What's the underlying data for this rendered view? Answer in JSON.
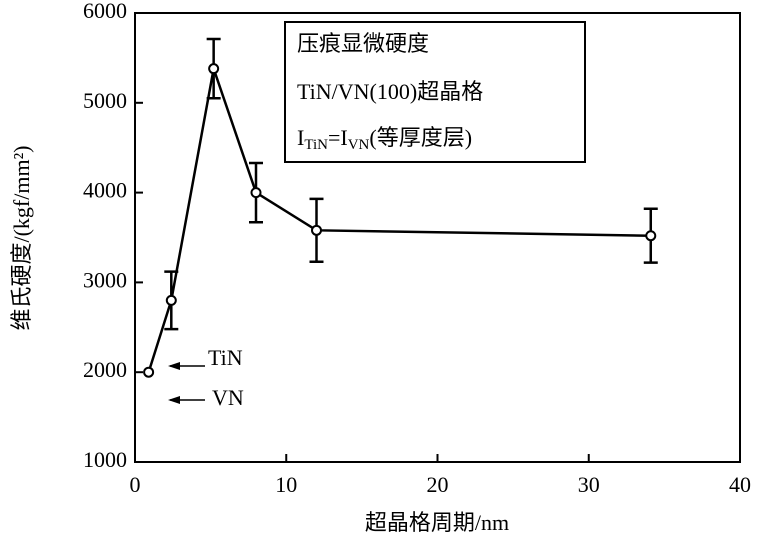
{
  "chart_data": {
    "type": "line",
    "x_label": "超晶格周期/nm",
    "y_label": "维氏硬度/(kgf/mm²)",
    "xlim": [
      0,
      40
    ],
    "xticks": [
      0,
      10,
      20,
      30,
      40
    ],
    "ylim": [
      1000,
      6000
    ],
    "yticks": [
      1000,
      2000,
      3000,
      4000,
      5000,
      6000
    ],
    "series": [
      {
        "color": "#000000",
        "x": [
          0.9,
          2.4,
          5.2,
          8.0,
          12,
          34.1
        ],
        "values": [
          2000,
          2800,
          5380,
          4000,
          3580,
          3520
        ],
        "errors": [
          null,
          320,
          330,
          330,
          350,
          300
        ]
      }
    ],
    "box_lines": [
      "压痕显微硬度",
      "TiN/VN(100)超晶格"
    ],
    "box_line3": [
      "I",
      "TiN",
      "=I",
      "VN",
      "(等厚度层)"
    ],
    "annotations": [
      "TiN",
      "VN"
    ]
  }
}
